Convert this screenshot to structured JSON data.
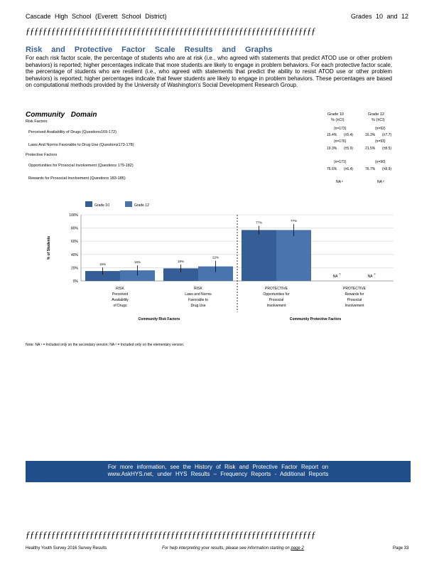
{
  "header": {
    "left": "Cascade High School (Everett School District)",
    "right": "Grades 10 and 12"
  },
  "deco_line": "ƒƒƒƒƒƒƒƒƒƒƒƒƒƒƒƒƒƒƒƒƒƒƒƒƒƒƒƒƒƒƒƒƒƒƒƒƒƒƒƒƒƒƒƒƒƒƒƒƒƒƒƒƒƒƒƒƒƒƒƒƒƒƒƒƒƒƒƒ",
  "section_title": "Risk and Protective Factor Scale Results and Graphs",
  "intro": "For each risk factor scale, the percentage of students who are at risk (i.e., who agreed with statements that predict ATOD use or other problem behaviors) is reported; higher percentages indicate that more students are likely to engage in problem behaviors. For each protective factor scale, the percentage of students who are resilient (i.e., who agreed with statements that predict the ability to resist ATOD use or other problem behaviors) is reported; higher percentages indicate that fewer students are likely to engage in problem behaviors. These percentages are based on computational methods provided by the University of Washington's Social Development Research Group.",
  "domain_title": "Community Domain",
  "table": {
    "col_heads": [
      {
        "grade": "Grade 10",
        "unit": "% (±CI)"
      },
      {
        "grade": "Grade 12",
        "unit": "% (±CI)"
      }
    ],
    "risk_heading": "Risk Factors",
    "protective_heading": "Protective Factors",
    "rows": [
      {
        "label": "Perceived Availability of Drugs (Questions169-172)",
        "n10": "(n=173)",
        "v10": "15.4%",
        "ci10": "(±5.4)",
        "n12": "(n=92)",
        "v12": "16.3%",
        "ci12": "(±7.7)"
      },
      {
        "label": "Laws And Norms Favorable to Drug Use (Questions173-178)",
        "n10": "(n=176)",
        "v10": "19.3%",
        "ci10": "(±5.9)",
        "n12": "(n=93)",
        "v12": "21.5%",
        "ci12": "(±8.5)"
      },
      {
        "label": "Opportunities for Prosocial Involvement (Questions 179-182)",
        "n10": "(n=171)",
        "v10": "76.6%",
        "ci10": "(±6.4)",
        "n12": "(n=90)",
        "v12": "76.7%",
        "ci12": "(±8.9)"
      },
      {
        "label": "Rewards for Prosocial Involvement (Questions 183-185)",
        "n10": "NA ²",
        "v10": "",
        "ci10": "",
        "n12": "NA ²",
        "v12": "",
        "ci12": ""
      }
    ]
  },
  "chart_data": {
    "type": "bar",
    "categories": [
      [
        "RISK",
        "Perceived",
        "Availability",
        "of Drugs"
      ],
      [
        "RISK",
        "Laws and Norms",
        "Favorable to",
        "Drug Use"
      ],
      [
        "PROTECTIVE",
        "Opportunities for",
        "Prosocial",
        "Involvement"
      ],
      [
        "PROTECTIVE",
        "Rewards for",
        "Prosocial",
        "Involvement"
      ]
    ],
    "series": [
      {
        "name": "Grade 10",
        "values": [
          15,
          19,
          77,
          null
        ],
        "ci": [
          5.4,
          5.9,
          6.4,
          null
        ],
        "labels": [
          "15%",
          "19%",
          "77%",
          "NA"
        ],
        "color": "#355e97"
      },
      {
        "name": "Grade 12",
        "values": [
          16,
          22,
          77,
          null
        ],
        "ci": [
          7.7,
          8.5,
          8.9,
          null
        ],
        "labels": [
          "16%",
          "22%",
          "77%",
          "NA"
        ],
        "color": "#4a74ad"
      }
    ],
    "na_superscript": "c",
    "ylabel": "% of Students",
    "yticks": [
      "0%",
      "20%",
      "40%",
      "60%",
      "80%",
      "100%"
    ],
    "ylim": [
      0,
      100
    ],
    "group_labels": [
      "Community Risk Factors",
      "Community Protective Factors"
    ],
    "legend_placement": "top-left"
  },
  "note": "Note: NA ¹ = Included only on the secondary version; NA ² = Included only on the elementary version.",
  "banner": {
    "line1": "For more information, see the History of Risk and Protective Factor Report on",
    "line2": "www.AskHYS.net, under HYS Results – Frequency Reports - Additional Reports"
  },
  "footer": {
    "left": "Healthy Youth Survey 2016 Survey Results",
    "center_prefix": "For help interpreting your results, please see information starting on ",
    "center_link": "page 2",
    "right": "Page 33"
  }
}
